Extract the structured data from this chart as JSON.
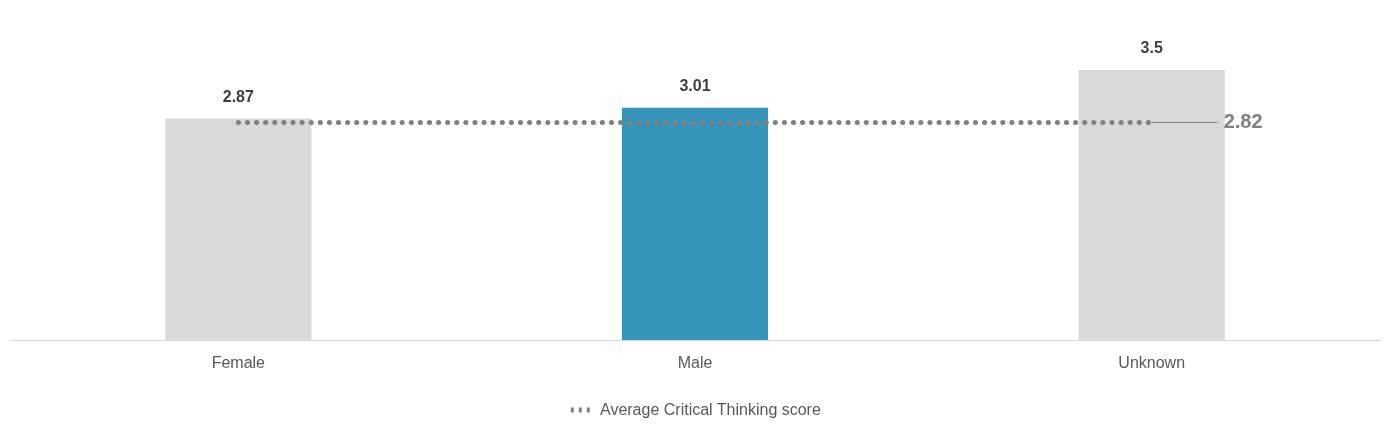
{
  "chart_data": {
    "type": "bar",
    "categories": [
      "Female",
      "Male",
      "Unknown"
    ],
    "series": [
      {
        "colors": [
          "#d9d9d9",
          "#3494ba",
          "#d9d9d9"
        ],
        "values": [
          2.87,
          3.01,
          3.5
        ],
        "value_labels": [
          "2.87",
          "3.01",
          "3.5"
        ]
      },
      {
        "type": "line",
        "name": "Average Critical Thinking score",
        "color": "#808080",
        "line_style": "dotted",
        "values": [
          2.82,
          2.82,
          2.82
        ],
        "value_labels": [
          null,
          null,
          "2.82"
        ]
      }
    ],
    "ylim": [
      0,
      3.5
    ],
    "tick_labels": "x",
    "legend": "bottom"
  }
}
